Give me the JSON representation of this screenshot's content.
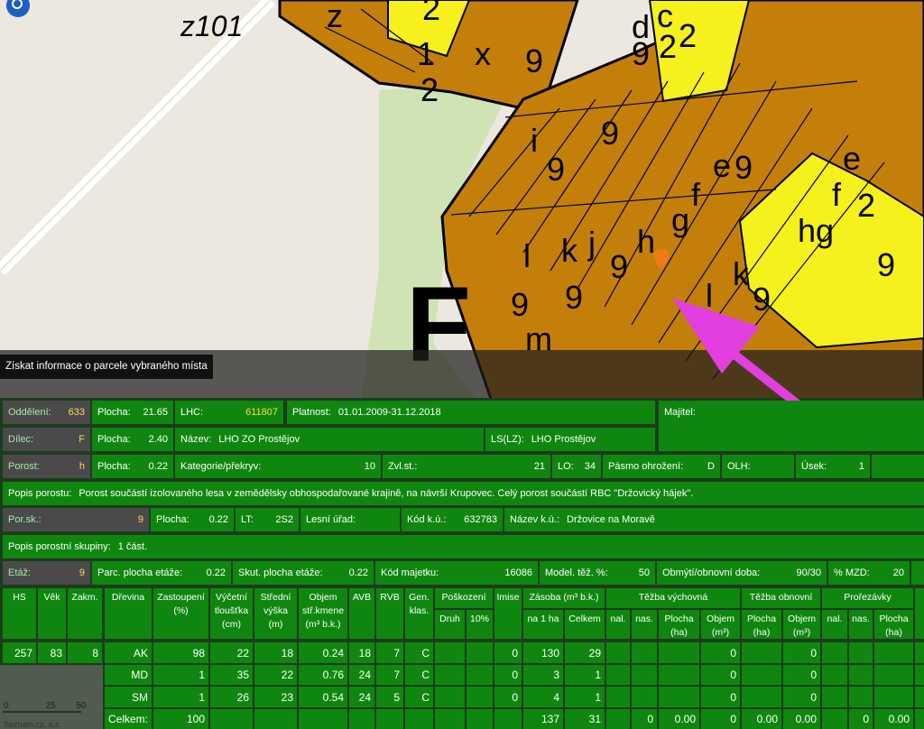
{
  "map": {
    "place_label": "z101",
    "section_label": "F",
    "labels": [
      "z",
      "2",
      "x",
      "9",
      "1",
      "2",
      "d",
      "c",
      "2",
      "9",
      "2",
      "i",
      "9",
      "9",
      "f",
      "e",
      "9",
      "g",
      "h",
      "j",
      "k",
      "l",
      "9",
      "9",
      "9",
      "m",
      "k",
      "hg",
      "f",
      "e",
      "2",
      "9",
      "l",
      "9"
    ],
    "scale": [
      "0",
      "25",
      "50"
    ],
    "copyright": "Seznam.cz, a.s."
  },
  "tooltip": "Získat informace o parcele vybraného místa",
  "info": {
    "rows": [
      [
        {
          "label": "Oddělení:",
          "value": "633"
        },
        {
          "label": "Plocha:",
          "value": "21.65"
        },
        {
          "label": "LHC:",
          "value": "611807"
        },
        {
          "label": "Platnost:",
          "value": "01.01.2009-31.12.2018"
        },
        {
          "label": "Majitel:"
        }
      ],
      [
        {
          "label": "Dílec:",
          "value": "F"
        },
        {
          "label": "Plocha:",
          "value": "2.40"
        },
        {
          "label": "Název:",
          "value": "LHO ZO Prostějov"
        },
        {
          "label": "LS(LZ):",
          "value": "LHO Prostějov"
        }
      ],
      [
        {
          "label": "Porost:",
          "value": "h"
        },
        {
          "label": "Plocha:",
          "value": "0.22"
        },
        {
          "label": "Kategorie/překryv:",
          "value": "10"
        },
        {
          "label": "Zvl.st.:",
          "value": "21"
        },
        {
          "label": "LO:",
          "value": "34"
        },
        {
          "label": "Pásmo ohrožení:",
          "value": "D"
        },
        {
          "label": "OLH:"
        },
        {
          "label": "Úsek:",
          "value": "1"
        }
      ],
      [
        {
          "label": "Popis porostu:",
          "value": "Porost součástí izolovaného lesa v zemědělsky obhospodařované krajině, na návrší Krupovec. Celý porost součástí RBC \"Držovický hájek\"."
        }
      ],
      [
        {
          "label": "Por.sk.:",
          "value": "9"
        },
        {
          "label": "Plocha:",
          "value": "0.22"
        },
        {
          "label": "LT:",
          "value": "2S2"
        },
        {
          "label": "Lesní úřad:"
        },
        {
          "label": "Kód k.ú.:",
          "value": "632783"
        },
        {
          "label": "Název k.ú.:",
          "value": "Držovice na Moravě"
        }
      ],
      [
        {
          "label": "Popis porostní skupiny:",
          "value": "1 část."
        }
      ],
      [
        {
          "label": "Etáž:",
          "value": "9"
        },
        {
          "label": "Parc. plocha etáže:",
          "value": "0.22"
        },
        {
          "label": "Skut. plocha etáže:",
          "value": "0.22"
        },
        {
          "label": "Kód majetku:",
          "value": "16086"
        },
        {
          "label": "Model. těž. %:",
          "value": "50"
        },
        {
          "label": "Obmýtí/obnovní doba:",
          "value": "90/30"
        },
        {
          "label": "% MZD:",
          "value": "20"
        }
      ]
    ]
  },
  "stand_table": {
    "columns": [
      "HS",
      "Věk",
      "Zakm."
    ],
    "row": [
      "257",
      "83",
      "8"
    ]
  },
  "species_table": {
    "columns": [
      "Dřevina",
      "Zastoupení (%)",
      "Výčetní tloušťka (cm)",
      "Střední výška (m)",
      "Objem stř.kmene (m³ b.k.)",
      "AVB",
      "RVB",
      "Gen. klas."
    ],
    "groups": [
      {
        "label": "Poškození",
        "columns": [
          "Druh",
          "10%"
        ]
      },
      {
        "label": "Imise"
      },
      {
        "label": "Zásoba (m³ b.k.)",
        "columns": [
          "na 1 ha",
          "Celkem"
        ]
      },
      {
        "label": "Těžba výchovná",
        "columns": [
          "nal.",
          "nas.",
          "Plocha (ha)",
          "Objem (m³)"
        ]
      },
      {
        "label": "Těžba obnovní",
        "columns": [
          "Plocha (ha)",
          "Objem (m³)"
        ]
      },
      {
        "label": "Prořezávky",
        "columns": [
          "nal.",
          "nas.",
          "Plocha (ha)"
        ]
      }
    ],
    "rows": [
      [
        "AK",
        "98",
        "22",
        "18",
        "0.24",
        "18",
        "7",
        "C",
        null,
        null,
        "0",
        "130",
        "29",
        null,
        null,
        null,
        "0",
        null,
        "0",
        null,
        null,
        null
      ],
      [
        "MD",
        "1",
        "35",
        "22",
        "0.76",
        "24",
        "7",
        "C",
        null,
        null,
        "0",
        "3",
        "1",
        null,
        null,
        null,
        "0",
        null,
        "0",
        null,
        null,
        null
      ],
      [
        "SM",
        "1",
        "26",
        "23",
        "0.54",
        "24",
        "5",
        "C",
        null,
        null,
        "0",
        "4",
        "1",
        null,
        null,
        null,
        "0",
        null,
        "0",
        null,
        null,
        null
      ],
      [
        "Celkem:",
        "100",
        null,
        null,
        null,
        null,
        null,
        null,
        null,
        null,
        null,
        "137",
        "31",
        null,
        "0",
        "0.00",
        "0",
        "0.00",
        "0.00",
        null,
        "0",
        "0.00"
      ]
    ]
  }
}
